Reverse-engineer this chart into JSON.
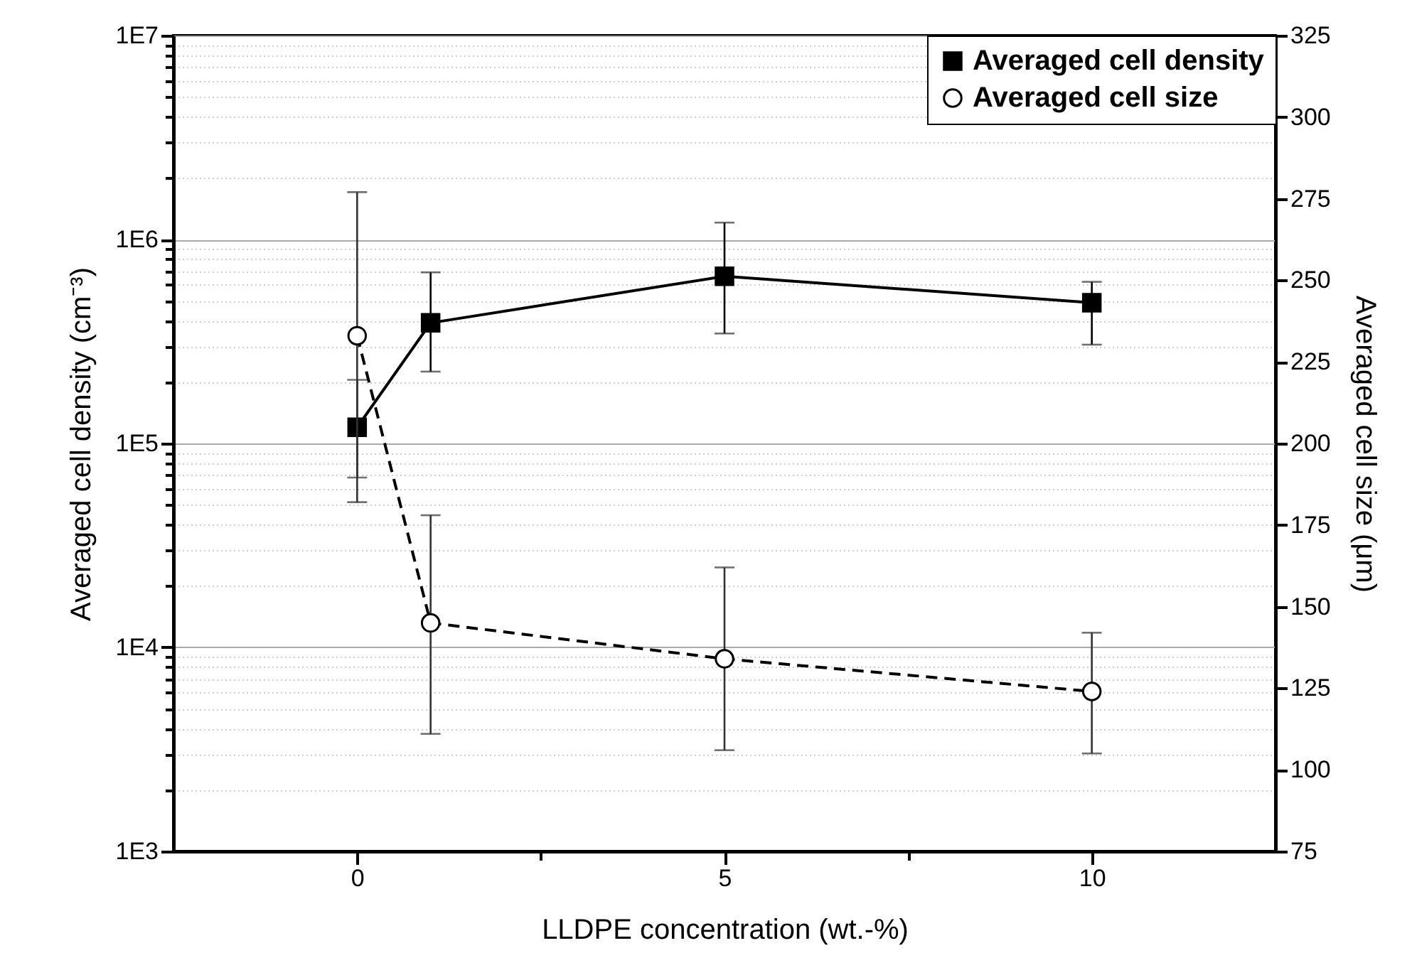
{
  "chart_data": {
    "type": "line",
    "xlabel": "LLDPE concentration (wt.-%)",
    "ylabel": "Averaged cell density (cm⁻³)",
    "y2label": "Averaged cell size (μm)",
    "x": [
      0,
      1,
      5,
      10
    ],
    "xlim": [
      -2.5,
      12.5
    ],
    "xticks": [
      0,
      {
        "value": 2.5,
        "label": null
      },
      5,
      {
        "value": 7.5,
        "label": null
      },
      10
    ],
    "log": "y",
    "ylim": [
      1000,
      10000000
    ],
    "yticks": [
      {
        "value": 1000,
        "label": "1E3"
      },
      {
        "value": 2000,
        "label": null
      },
      {
        "value": 3000,
        "label": null
      },
      {
        "value": 4000,
        "label": null
      },
      {
        "value": 5000,
        "label": null
      },
      {
        "value": 6000,
        "label": null
      },
      {
        "value": 7000,
        "label": null
      },
      {
        "value": 8000,
        "label": null
      },
      {
        "value": 9000,
        "label": null
      },
      {
        "value": 10000,
        "label": "1E4"
      },
      {
        "value": 20000,
        "label": null
      },
      {
        "value": 30000,
        "label": null
      },
      {
        "value": 40000,
        "label": null
      },
      {
        "value": 50000,
        "label": null
      },
      {
        "value": 60000,
        "label": null
      },
      {
        "value": 70000,
        "label": null
      },
      {
        "value": 80000,
        "label": null
      },
      {
        "value": 90000,
        "label": null
      },
      {
        "value": 100000,
        "label": "1E5"
      },
      {
        "value": 200000,
        "label": null
      },
      {
        "value": 300000,
        "label": null
      },
      {
        "value": 400000,
        "label": null
      },
      {
        "value": 500000,
        "label": null
      },
      {
        "value": 600000,
        "label": null
      },
      {
        "value": 700000,
        "label": null
      },
      {
        "value": 800000,
        "label": null
      },
      {
        "value": 900000,
        "label": null
      },
      {
        "value": 1000000,
        "label": "1E6"
      },
      {
        "value": 2000000,
        "label": null
      },
      {
        "value": 3000000,
        "label": null
      },
      {
        "value": 4000000,
        "label": null
      },
      {
        "value": 5000000,
        "label": null
      },
      {
        "value": 6000000,
        "label": null
      },
      {
        "value": 7000000,
        "label": null
      },
      {
        "value": 8000000,
        "label": null
      },
      {
        "value": 9000000,
        "label": null
      },
      {
        "value": 10000000,
        "label": "1E7"
      }
    ],
    "y2lim": [
      75,
      325
    ],
    "y2ticks": [
      75,
      100,
      125,
      150,
      175,
      200,
      225,
      250,
      275,
      300,
      325
    ],
    "grid": "y",
    "legend": "top right",
    "series": [
      {
        "name": "Averaged cell density",
        "color": "#000000",
        "marker": "square",
        "line_style": "solid",
        "values": [
          120000,
          390000,
          660000,
          490000
        ],
        "errors": [
          [
            68000,
            205000
          ],
          [
            225000,
            690000
          ],
          [
            346000,
            1210000
          ],
          [
            305000,
            620000
          ]
        ]
      },
      {
        "name": "Averaged cell size",
        "color": "#000000",
        "marker": "circle",
        "line_style": "dashed",
        "axis": "y2",
        "values": [
          233,
          145,
          134,
          124
        ],
        "errors": [
          [
            182,
            277
          ],
          [
            111,
            178
          ],
          [
            106,
            162
          ],
          [
            105,
            142
          ]
        ]
      }
    ]
  }
}
